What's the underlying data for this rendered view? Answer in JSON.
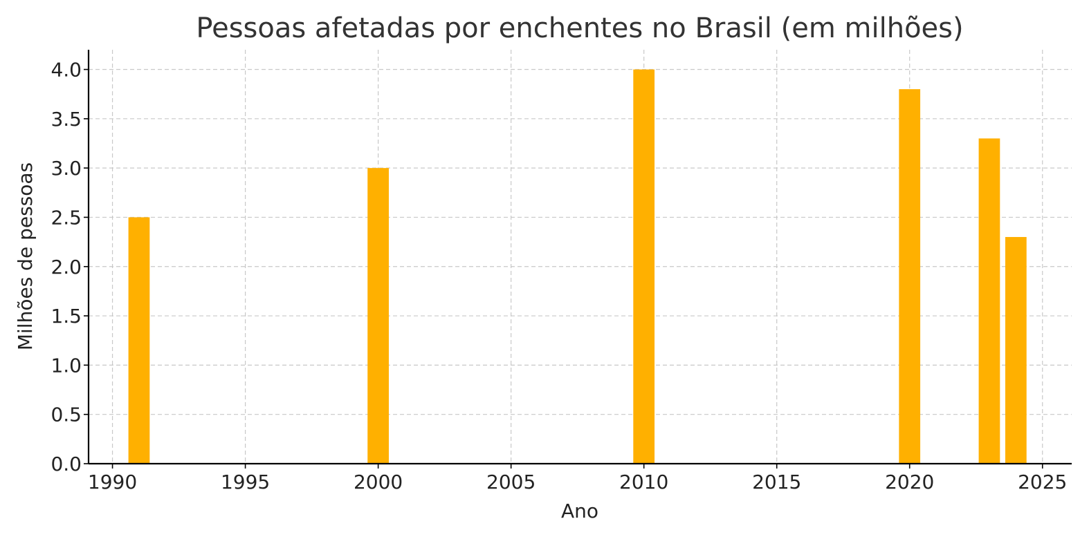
{
  "chart_data": {
    "type": "bar",
    "title": "Pessoas afetadas por enchentes no Brasil (em milhões)",
    "xlabel": "Ano",
    "ylabel": "Milhões de pessoas",
    "x": [
      1991,
      2000,
      2010,
      2020,
      2023,
      2024
    ],
    "values": [
      2.5,
      3.0,
      4.0,
      3.8,
      3.3,
      2.3
    ],
    "xlim": [
      1989.1,
      2026.1
    ],
    "ylim": [
      0,
      4.2
    ],
    "xticks": [
      1990,
      1995,
      2000,
      2005,
      2010,
      2015,
      2020,
      2025
    ],
    "yticks": [
      0.0,
      0.5,
      1.0,
      1.5,
      2.0,
      2.5,
      3.0,
      3.5,
      4.0
    ],
    "ytick_labels": [
      "0.0",
      "0.5",
      "1.0",
      "1.5",
      "2.0",
      "2.5",
      "3.0",
      "3.5",
      "4.0"
    ],
    "bar_width_years": 0.8,
    "grid": true,
    "colors": {
      "bar": "#FFB000"
    }
  }
}
